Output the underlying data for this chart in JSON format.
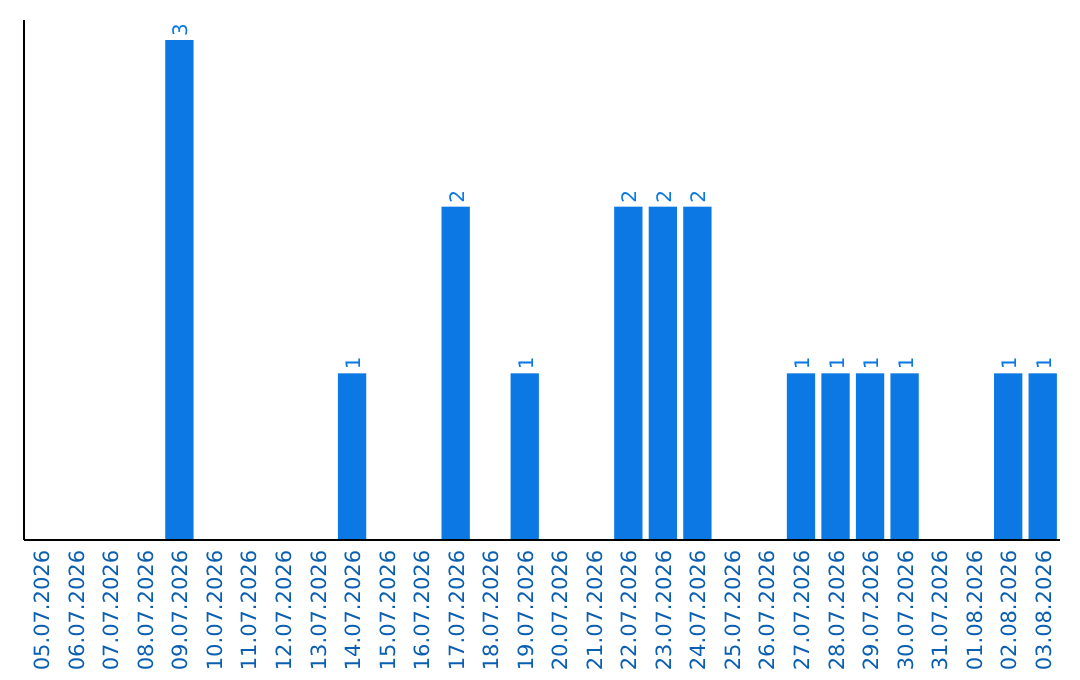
{
  "chart_data": {
    "type": "bar",
    "categories": [
      "05.07.2026",
      "06.07.2026",
      "07.07.2026",
      "08.07.2026",
      "09.07.2026",
      "10.07.2026",
      "11.07.2026",
      "12.07.2026",
      "13.07.2026",
      "14.07.2026",
      "15.07.2026",
      "16.07.2026",
      "17.07.2026",
      "18.07.2026",
      "19.07.2026",
      "20.07.2026",
      "21.07.2026",
      "22.07.2026",
      "23.07.2026",
      "24.07.2026",
      "25.07.2026",
      "26.07.2026",
      "27.07.2026",
      "28.07.2026",
      "29.07.2026",
      "30.07.2026",
      "31.07.2026",
      "01.08.2026",
      "02.08.2026",
      "03.08.2026"
    ],
    "values": [
      0,
      0,
      0,
      0,
      3,
      0,
      0,
      0,
      0,
      1,
      0,
      0,
      2,
      0,
      1,
      0,
      0,
      2,
      2,
      2,
      0,
      0,
      1,
      1,
      1,
      1,
      0,
      0,
      1,
      1
    ],
    "value_labels": [
      null,
      null,
      null,
      null,
      "3",
      null,
      null,
      null,
      null,
      "1",
      null,
      null,
      "2",
      null,
      "1",
      null,
      null,
      "2",
      "2",
      "2",
      null,
      null,
      "1",
      "1",
      "1",
      "1",
      null,
      null,
      "1",
      "1"
    ],
    "color": "#0b78e3",
    "ylim": [
      0,
      3.12
    ],
    "tick_labels": "x",
    "grid": false
  }
}
